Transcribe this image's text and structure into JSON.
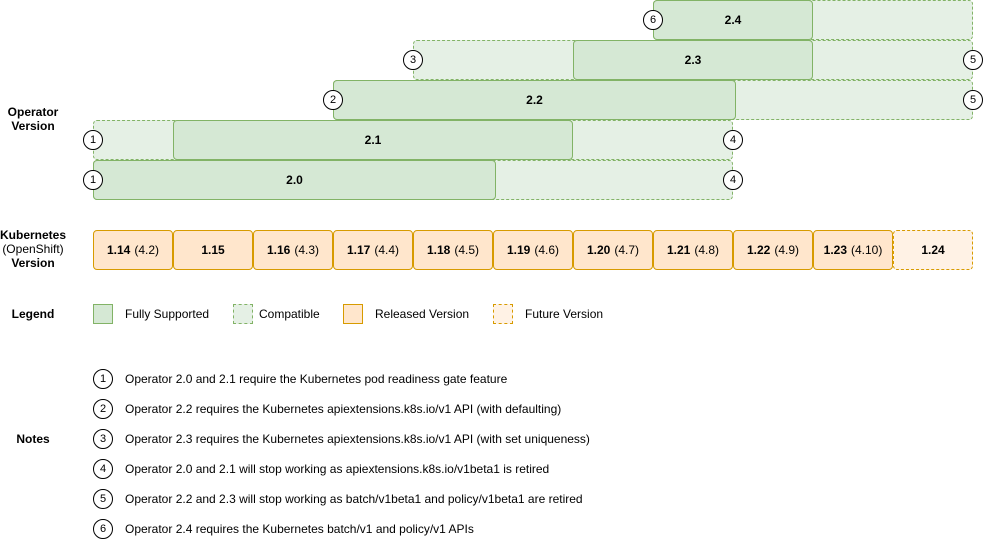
{
  "labels": {
    "operator_version": "Operator Version",
    "kubernetes": "Kubernetes",
    "openshift": "(OpenShift)",
    "version": "Version",
    "legend": "Legend",
    "notes": "Notes"
  },
  "operators": [
    {
      "version": "2.4",
      "note_start": "6",
      "note_end": ""
    },
    {
      "version": "2.3",
      "note_start": "3",
      "note_end": "5"
    },
    {
      "version": "2.2",
      "note_start": "2",
      "note_end": "5"
    },
    {
      "version": "2.1",
      "note_start": "1",
      "note_end": "4"
    },
    {
      "version": "2.0",
      "note_start": "1",
      "note_end": "4"
    }
  ],
  "kubernetes_versions": [
    {
      "k8s": "1.14",
      "openshift": "(4.2)",
      "status": "released"
    },
    {
      "k8s": "1.15",
      "openshift": "",
      "status": "released"
    },
    {
      "k8s": "1.16",
      "openshift": "(4.3)",
      "status": "released"
    },
    {
      "k8s": "1.17",
      "openshift": "(4.4)",
      "status": "released"
    },
    {
      "k8s": "1.18",
      "openshift": "(4.5)",
      "status": "released"
    },
    {
      "k8s": "1.19",
      "openshift": "(4.6)",
      "status": "released"
    },
    {
      "k8s": "1.20",
      "openshift": "(4.7)",
      "status": "released"
    },
    {
      "k8s": "1.21",
      "openshift": "(4.8)",
      "status": "released"
    },
    {
      "k8s": "1.22",
      "openshift": "(4.9)",
      "status": "released"
    },
    {
      "k8s": "1.23",
      "openshift": "(4.10)",
      "status": "released"
    },
    {
      "k8s": "1.24",
      "openshift": "",
      "status": "future"
    }
  ],
  "legend": [
    {
      "label": "Fully Supported"
    },
    {
      "label": "Compatible"
    },
    {
      "label": "Released Version"
    },
    {
      "label": "Future Version"
    }
  ],
  "notes": [
    {
      "num": "1",
      "text": "Operator 2.0 and 2.1 require the Kubernetes pod readiness gate feature"
    },
    {
      "num": "2",
      "text": "Operator 2.2 requires the Kubernetes apiextensions.k8s.io/v1 API (with defaulting)"
    },
    {
      "num": "3",
      "text": "Operator 2.3 requires the Kubernetes apiextensions.k8s.io/v1 API (with set uniqueness)"
    },
    {
      "num": "4",
      "text": "Operator 2.0 and 2.1 will stop working as apiextensions.k8s.io/v1beta1 is retired"
    },
    {
      "num": "5",
      "text": "Operator 2.2 and 2.3 will stop working as batch/v1beta1 and policy/v1beta1 are retired"
    },
    {
      "num": "6",
      "text": "Operator 2.4 requires the Kubernetes batch/v1 and policy/v1 APIs"
    }
  ],
  "colors": {
    "fully_supported_fill": "#d5e8d4",
    "compatible_fill": "#e5f0e5",
    "green_stroke": "#82b366",
    "released_fill": "#ffe6cc",
    "future_fill": "#fff2e5",
    "orange_stroke": "#d79b00"
  }
}
